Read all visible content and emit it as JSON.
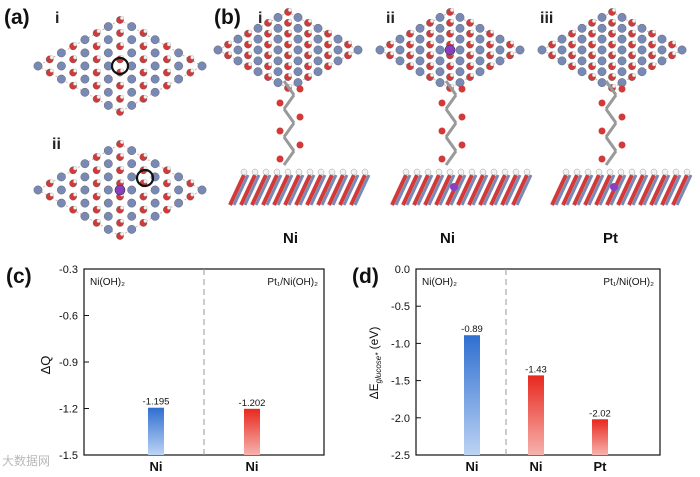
{
  "panels": {
    "a": {
      "label": "(a)",
      "sub": [
        "i",
        "ii"
      ]
    },
    "b": {
      "label": "(b)",
      "sub": [
        "i",
        "ii",
        "iii"
      ],
      "site_labels": [
        "Ni",
        "Ni",
        "Pt"
      ]
    },
    "c": {
      "label": "(c)"
    },
    "d": {
      "label": "(d)"
    }
  },
  "colors": {
    "O": "#d23a3a",
    "H": "#f2f2f2",
    "Ni": "#7889b5",
    "Pt": "#8a3fc0",
    "C": "#8a8a8a",
    "blue_bar": "#2f6fd0",
    "red_bar": "#e8281e"
  },
  "watermark": "大数据网",
  "chart_data": [
    {
      "type": "bar",
      "panel": "c",
      "ylabel": "ΔQ",
      "ylim": [
        -0.3,
        -1.5
      ],
      "y_inverted": true,
      "yticks": [
        -1.5,
        -1.2,
        -0.9,
        -0.6,
        -0.3
      ],
      "groups": [
        "Ni(OH)₂",
        "Pt₁/Ni(OH)₂"
      ],
      "categories": [
        "Ni",
        "Ni"
      ],
      "values": [
        -1.195,
        -1.202
      ],
      "value_labels": [
        "-1.195",
        "-1.202"
      ],
      "bar_colors": [
        "blue",
        "red"
      ]
    },
    {
      "type": "bar",
      "panel": "d",
      "ylabel": "ΔE",
      "ylabel_sub": "glucose*",
      "ylabel_unit": " (eV)",
      "ylim": [
        0.0,
        -2.5
      ],
      "y_inverted": true,
      "yticks": [
        -2.5,
        -2.0,
        -1.5,
        -1.0,
        -0.5,
        0.0
      ],
      "groups": [
        "Ni(OH)₂",
        "Pt₁/Ni(OH)₂"
      ],
      "categories": [
        "Ni",
        "Ni",
        "Pt"
      ],
      "values": [
        -0.89,
        -1.43,
        -2.02
      ],
      "value_labels": [
        "-0.89",
        "-1.43",
        "-2.02"
      ],
      "bar_colors": [
        "blue",
        "red",
        "red"
      ]
    }
  ]
}
